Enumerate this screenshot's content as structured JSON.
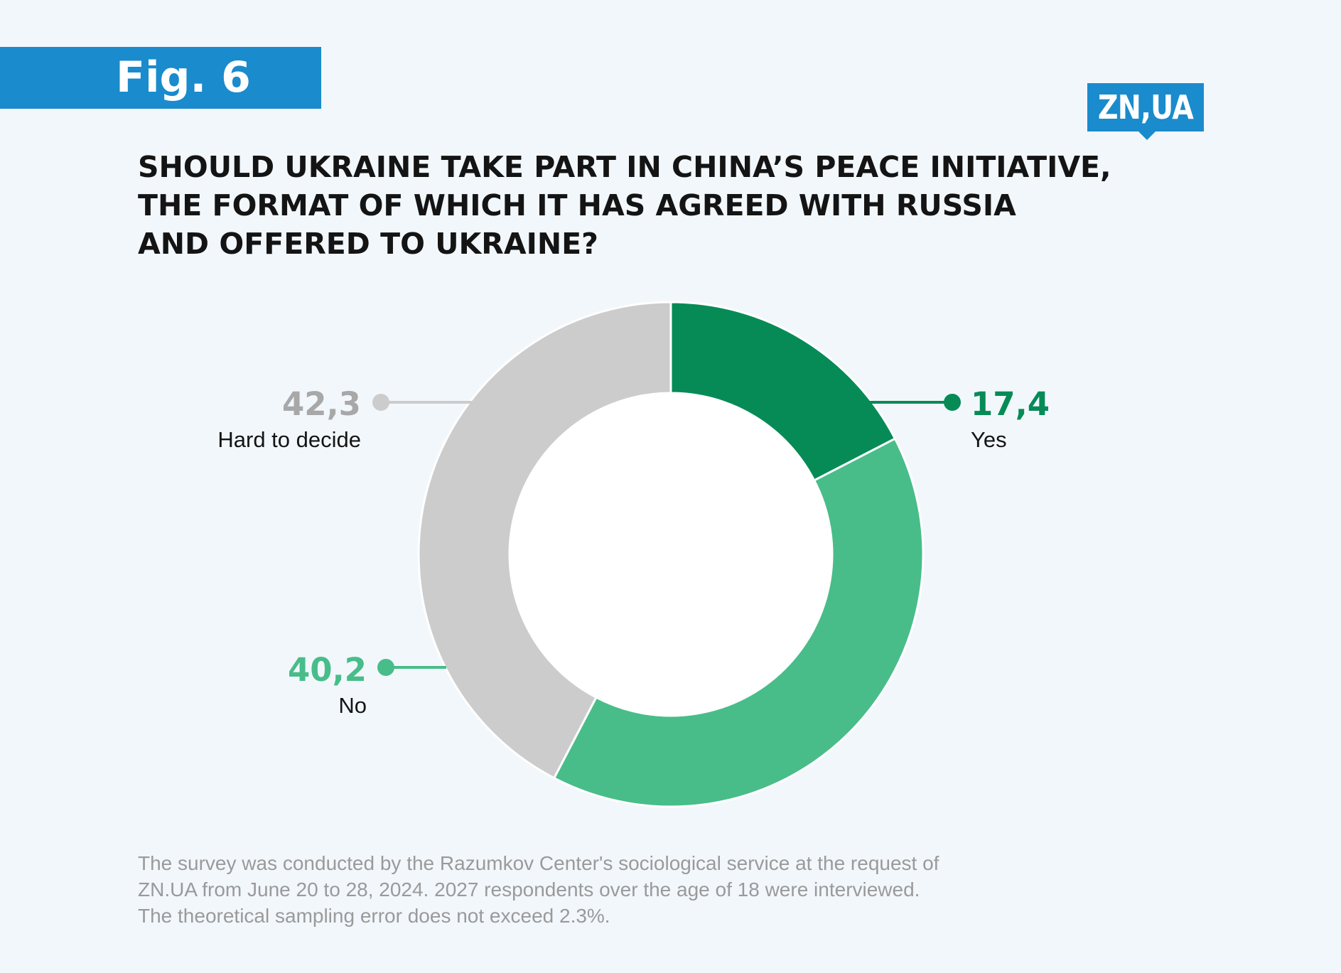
{
  "figure_label": "Fig. 6",
  "logo_text": "ZN,UA",
  "colors": {
    "background": "#f2f7fc",
    "accent": "#1a8bcc",
    "yes": "#068b57",
    "no": "#48bd89",
    "hard": "#cccccc",
    "hard_value": "#a8a8a8"
  },
  "chart_data": {
    "type": "pie",
    "variant": "donut",
    "title_lines": [
      "SHOULD UKRAINE TAKE PART IN CHINA’S PEACE INITIATIVE,",
      "THE FORMAT OF WHICH IT HAS AGREED WITH RUSSIA",
      "AND OFFERED TO UKRAINE?"
    ],
    "slices": [
      {
        "label": "Yes",
        "value": 17.4,
        "value_text": "17,4",
        "color": "#068b57",
        "label_color": "#068b57"
      },
      {
        "label": "No",
        "value": 40.2,
        "value_text": "40,2",
        "color": "#48bd89",
        "label_color": "#48bd89"
      },
      {
        "label": "Hard to decide",
        "value": 42.3,
        "value_text": "42,3",
        "color": "#cccccc",
        "label_color": "#a8a8a8"
      }
    ],
    "unit": "%"
  },
  "footnote": [
    "The survey was conducted by the Razumkov Center's sociological service at the request of",
    "ZN.UA from June 20 to 28, 2024. 2027 respondents over the age of 18 were interviewed.",
    "The theoretical sampling error does not exceed 2.3%."
  ]
}
